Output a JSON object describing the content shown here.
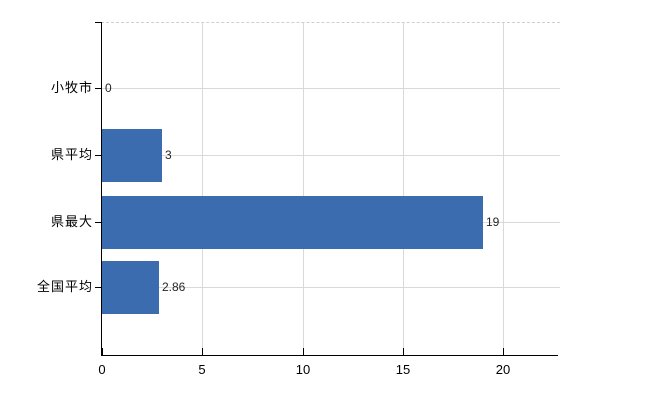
{
  "chart_data": {
    "type": "bar",
    "orientation": "horizontal",
    "title": "",
    "categories": [
      "小牧市",
      "県平均",
      "県最大",
      "全国平均"
    ],
    "values": [
      0,
      3,
      19,
      2.86
    ],
    "value_labels": [
      "0",
      "3",
      "19",
      "2.86"
    ],
    "xlabel": "",
    "ylabel": "",
    "xticks": [
      0,
      5,
      10,
      15,
      20
    ],
    "xtick_labels": [
      "0",
      "5",
      "10",
      "15",
      "20"
    ],
    "xlim": [
      0,
      22.8
    ],
    "grid": true,
    "grid_horizontal_at_category_centers": true,
    "top_border_style": "dashed",
    "legend": false,
    "colors": {
      "bar": "#3c6cb0",
      "gridline": "#d9d9d9",
      "top_border": "#cfcfcf",
      "axis": "#000000",
      "category_text": "#000000",
      "value_text": "#262626"
    }
  }
}
